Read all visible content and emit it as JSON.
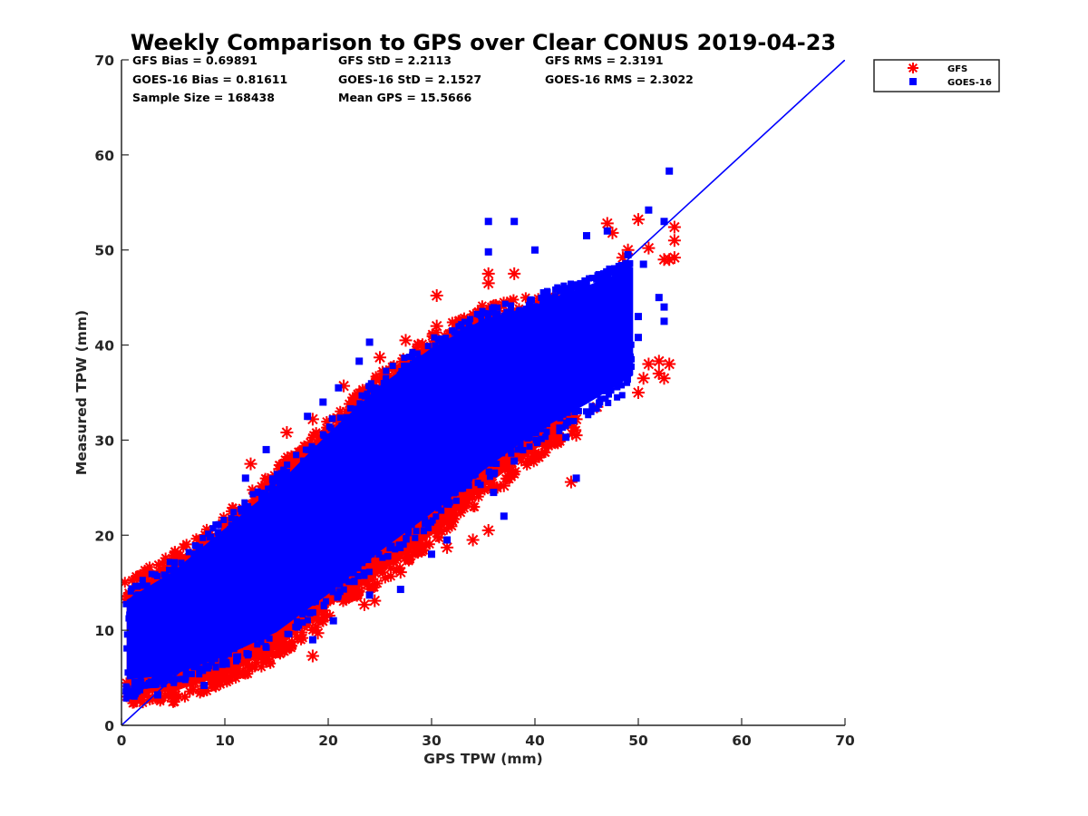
{
  "chart_data": {
    "type": "scatter",
    "title": "Weekly Comparison to GPS over Clear CONUS 2019-04-23",
    "xlabel": "GPS TPW (mm)",
    "ylabel": "Measured TPW (mm)",
    "xlim": [
      0,
      70
    ],
    "ylim": [
      0,
      70
    ],
    "xticks": [
      0,
      10,
      20,
      30,
      40,
      50,
      60,
      70
    ],
    "yticks": [
      0,
      10,
      20,
      30,
      40,
      50,
      60,
      70
    ],
    "grid": false,
    "legend_position": "outside-top-right",
    "stats": [
      [
        "GFS Bias = 0.69891",
        "GFS StD = 2.2113",
        "GFS RMS = 2.3191"
      ],
      [
        "GOES-16 Bias = 0.81611",
        "GOES-16 StD = 2.1527",
        "GOES-16 RMS = 2.3022"
      ],
      [
        "Sample Size = 168438",
        "Mean GPS = 15.5666",
        ""
      ]
    ],
    "reference_line": {
      "x": [
        0,
        70
      ],
      "y": [
        0,
        70
      ],
      "color": "#0000ff"
    },
    "series": [
      {
        "name": "GFS",
        "marker": "asterisk",
        "color": "#ff0000",
        "band": [
          [
            0.5,
            3.5,
            2.5,
            14
          ],
          [
            5,
            3.5,
            7.5,
            17
          ],
          [
            10,
            5.5,
            13,
            21
          ],
          [
            15,
            8,
            18.5,
            26
          ],
          [
            20,
            12.5,
            23.5,
            31
          ],
          [
            25,
            16,
            28,
            36
          ],
          [
            30,
            20,
            32.5,
            40
          ],
          [
            35,
            25,
            37,
            43
          ],
          [
            40,
            29,
            40.5,
            44
          ],
          [
            44,
            32,
            43,
            44
          ]
        ],
        "outliers": [
          [
            18.5,
            7.3
          ],
          [
            19,
            9.7
          ],
          [
            23.5,
            12.7
          ],
          [
            24.5,
            13.1
          ],
          [
            27,
            16.1
          ],
          [
            29,
            19.8
          ],
          [
            31.5,
            18.7
          ],
          [
            34,
            19.5
          ],
          [
            35.5,
            20.5
          ],
          [
            37,
            25.2
          ],
          [
            37.5,
            26.7
          ],
          [
            40,
            28.6
          ],
          [
            43.5,
            25.6
          ],
          [
            44,
            30.5
          ],
          [
            44,
            32.2
          ],
          [
            46,
            33.5
          ],
          [
            47,
            35.5
          ],
          [
            48,
            36.5
          ],
          [
            49,
            37.5
          ],
          [
            50,
            35.0
          ],
          [
            50.5,
            36.5
          ],
          [
            51,
            38.0
          ],
          [
            52,
            37.0
          ],
          [
            52.5,
            36.5
          ],
          [
            53,
            38.0
          ],
          [
            52,
            38.3
          ],
          [
            53,
            49.0
          ],
          [
            53.5,
            49.2
          ],
          [
            52.5,
            49.0
          ],
          [
            53.5,
            51.0
          ],
          [
            53.5,
            52.4
          ],
          [
            51,
            50.2
          ],
          [
            49,
            50.0
          ],
          [
            47.5,
            51.8
          ],
          [
            47,
            52.8
          ],
          [
            50,
            53.2
          ],
          [
            48.5,
            49.2
          ],
          [
            35.5,
            46.5
          ],
          [
            35.5,
            47.5
          ],
          [
            38,
            47.5
          ],
          [
            30.5,
            45.2
          ],
          [
            30.5,
            42.0
          ],
          [
            27.5,
            40.5
          ],
          [
            25,
            38.7
          ],
          [
            21.5,
            35.7
          ],
          [
            18.5,
            32.2
          ],
          [
            16,
            30.8
          ],
          [
            12.5,
            27.5
          ],
          [
            12,
            21.8
          ],
          [
            10,
            19.3
          ],
          [
            6,
            13.5
          ],
          [
            2.5,
            9.3
          ],
          [
            3,
            6.5
          ],
          [
            1,
            3.5
          ],
          [
            2,
            3.0
          ],
          [
            5,
            2.5
          ],
          [
            1.5,
            2.7
          ]
        ]
      },
      {
        "name": "GOES-16",
        "marker": "square",
        "color": "#0000ff",
        "band": [
          [
            0.5,
            4,
            2,
            14
          ],
          [
            5,
            4.5,
            7.5,
            17
          ],
          [
            10,
            6.5,
            13,
            21.5
          ],
          [
            15,
            9,
            18,
            26
          ],
          [
            20,
            13,
            23,
            31.5
          ],
          [
            25,
            17.5,
            28,
            36.5
          ],
          [
            30,
            21.5,
            32,
            40.5
          ],
          [
            35,
            26,
            36.5,
            43.5
          ],
          [
            40,
            30,
            40,
            45
          ],
          [
            45,
            33,
            44.5,
            47
          ],
          [
            49.5,
            36,
            47.5,
            49
          ]
        ],
        "outliers": [
          [
            53,
            58.3
          ],
          [
            51,
            54.2
          ],
          [
            52.5,
            53.0
          ],
          [
            45,
            51.5
          ],
          [
            47,
            52.0
          ],
          [
            49,
            49.5
          ],
          [
            50.5,
            48.5
          ],
          [
            52,
            45.0
          ],
          [
            52.5,
            44.0
          ],
          [
            52.5,
            42.5
          ],
          [
            50,
            40.8
          ],
          [
            49,
            41.5
          ],
          [
            48,
            42.5
          ],
          [
            50,
            43.0
          ],
          [
            35.5,
            53.0
          ],
          [
            38,
            53.0
          ],
          [
            40,
            50.0
          ],
          [
            35.5,
            49.8
          ],
          [
            24,
            40.3
          ],
          [
            23,
            38.3
          ],
          [
            21,
            35.5
          ],
          [
            19.5,
            34.0
          ],
          [
            18,
            32.5
          ],
          [
            14,
            29.0
          ],
          [
            12,
            26.0
          ],
          [
            7.5,
            18.2
          ],
          [
            44,
            26.0
          ],
          [
            43,
            30.3
          ],
          [
            42,
            33.5
          ],
          [
            38,
            27.8
          ],
          [
            36,
            24.5
          ],
          [
            37,
            22.0
          ],
          [
            31.5,
            19.5
          ],
          [
            30,
            18.0
          ],
          [
            27,
            14.3
          ],
          [
            24,
            13.7
          ],
          [
            20.5,
            11.0
          ],
          [
            18.5,
            9.0
          ],
          [
            1.5,
            7.0
          ],
          [
            1.3,
            4.5
          ],
          [
            3.5,
            3.2
          ],
          [
            8,
            4.2
          ]
        ]
      }
    ]
  }
}
